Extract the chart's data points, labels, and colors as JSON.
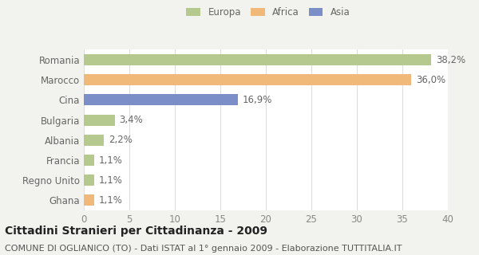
{
  "categories": [
    "Romania",
    "Marocco",
    "Cina",
    "Bulgaria",
    "Albania",
    "Francia",
    "Regno Unito",
    "Ghana"
  ],
  "values": [
    38.2,
    36.0,
    16.9,
    3.4,
    2.2,
    1.1,
    1.1,
    1.1
  ],
  "labels": [
    "38,2%",
    "36,0%",
    "16,9%",
    "3,4%",
    "2,2%",
    "1,1%",
    "1,1%",
    "1,1%"
  ],
  "colors": [
    "#b5c98e",
    "#f0b97a",
    "#7b8ec8",
    "#b5c98e",
    "#b5c98e",
    "#b5c98e",
    "#b5c98e",
    "#f0b97a"
  ],
  "legend_labels": [
    "Europa",
    "Africa",
    "Asia"
  ],
  "legend_colors": [
    "#b5c98e",
    "#f0b97a",
    "#7b8ec8"
  ],
  "xlim": [
    0,
    40
  ],
  "xticks": [
    0,
    5,
    10,
    15,
    20,
    25,
    30,
    35,
    40
  ],
  "title": "Cittadini Stranieri per Cittadinanza - 2009",
  "subtitle": "COMUNE DI OGLIANICO (TO) - Dati ISTAT al 1° gennaio 2009 - Elaborazione TUTTITALIA.IT",
  "bg_color": "#f2f2ee",
  "bar_bg_color": "#ffffff",
  "grid_color": "#dddddd",
  "label_fontsize": 8.5,
  "tick_fontsize": 8.5,
  "title_fontsize": 10,
  "subtitle_fontsize": 8
}
